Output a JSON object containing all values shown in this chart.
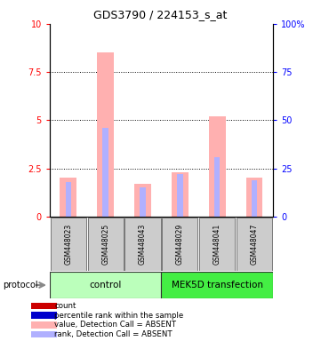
{
  "title": "GDS3790 / 224153_s_at",
  "samples": [
    "GSM448023",
    "GSM448025",
    "GSM448043",
    "GSM448029",
    "GSM448041",
    "GSM448047"
  ],
  "group_labels": [
    "control",
    "MEK5D transfection"
  ],
  "group_colors": [
    "#bbffbb",
    "#44ee44"
  ],
  "values": [
    2.0,
    8.5,
    1.7,
    2.3,
    5.2,
    2.0
  ],
  "ranks": [
    1.8,
    4.6,
    1.5,
    2.2,
    3.1,
    1.9
  ],
  "bar_color_value": "#ffb0b0",
  "bar_color_rank": "#b0b0ff",
  "ylim_left": [
    0,
    10
  ],
  "ylim_right": [
    0,
    100
  ],
  "yticks_left": [
    0,
    2.5,
    5.0,
    7.5,
    10.0
  ],
  "yticks_right": [
    0,
    25,
    50,
    75,
    100
  ],
  "ytick_labels_left": [
    "0",
    "2.5",
    "5",
    "7.5",
    "10"
  ],
  "ytick_labels_right": [
    "0",
    "25",
    "50",
    "75",
    "100%"
  ],
  "legend_items": [
    {
      "label": "count",
      "color": "#cc0000"
    },
    {
      "label": "percentile rank within the sample",
      "color": "#0000cc"
    },
    {
      "label": "value, Detection Call = ABSENT",
      "color": "#ffb0b0"
    },
    {
      "label": "rank, Detection Call = ABSENT",
      "color": "#b0b0ff"
    }
  ],
  "background_color": "#ffffff",
  "sample_box_color": "#cccccc",
  "sample_box_border": "#777777",
  "protocol_label": "protocol"
}
